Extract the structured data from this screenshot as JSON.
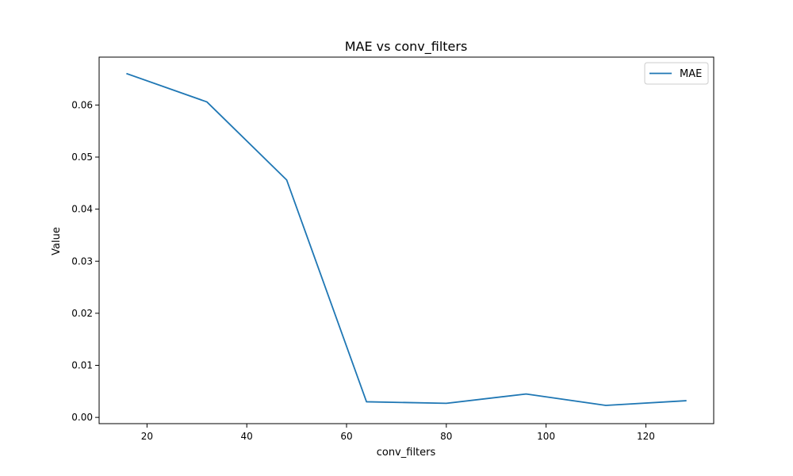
{
  "chart_data": {
    "type": "line",
    "title": "MAE vs conv_filters",
    "xlabel": "conv_filters",
    "ylabel": "Value",
    "xlim": [
      10.4,
      133.6
    ],
    "ylim": [
      -0.0012,
      0.0692
    ],
    "xticks": [
      20,
      40,
      60,
      80,
      100,
      120
    ],
    "xtick_labels": [
      "20",
      "40",
      "60",
      "80",
      "100",
      "120"
    ],
    "yticks": [
      0.0,
      0.01,
      0.02,
      0.03,
      0.04,
      0.05,
      0.06
    ],
    "ytick_labels": [
      "0.00",
      "0.01",
      "0.02",
      "0.03",
      "0.04",
      "0.05",
      "0.06"
    ],
    "grid": false,
    "legend_position": "top-right",
    "series": [
      {
        "name": "MAE",
        "color": "#1f77b4",
        "x": [
          16,
          32,
          48,
          64,
          80,
          96,
          112,
          128
        ],
        "y": [
          0.066,
          0.0606,
          0.0456,
          0.003,
          0.0027,
          0.0045,
          0.0023,
          0.0032
        ]
      }
    ]
  }
}
